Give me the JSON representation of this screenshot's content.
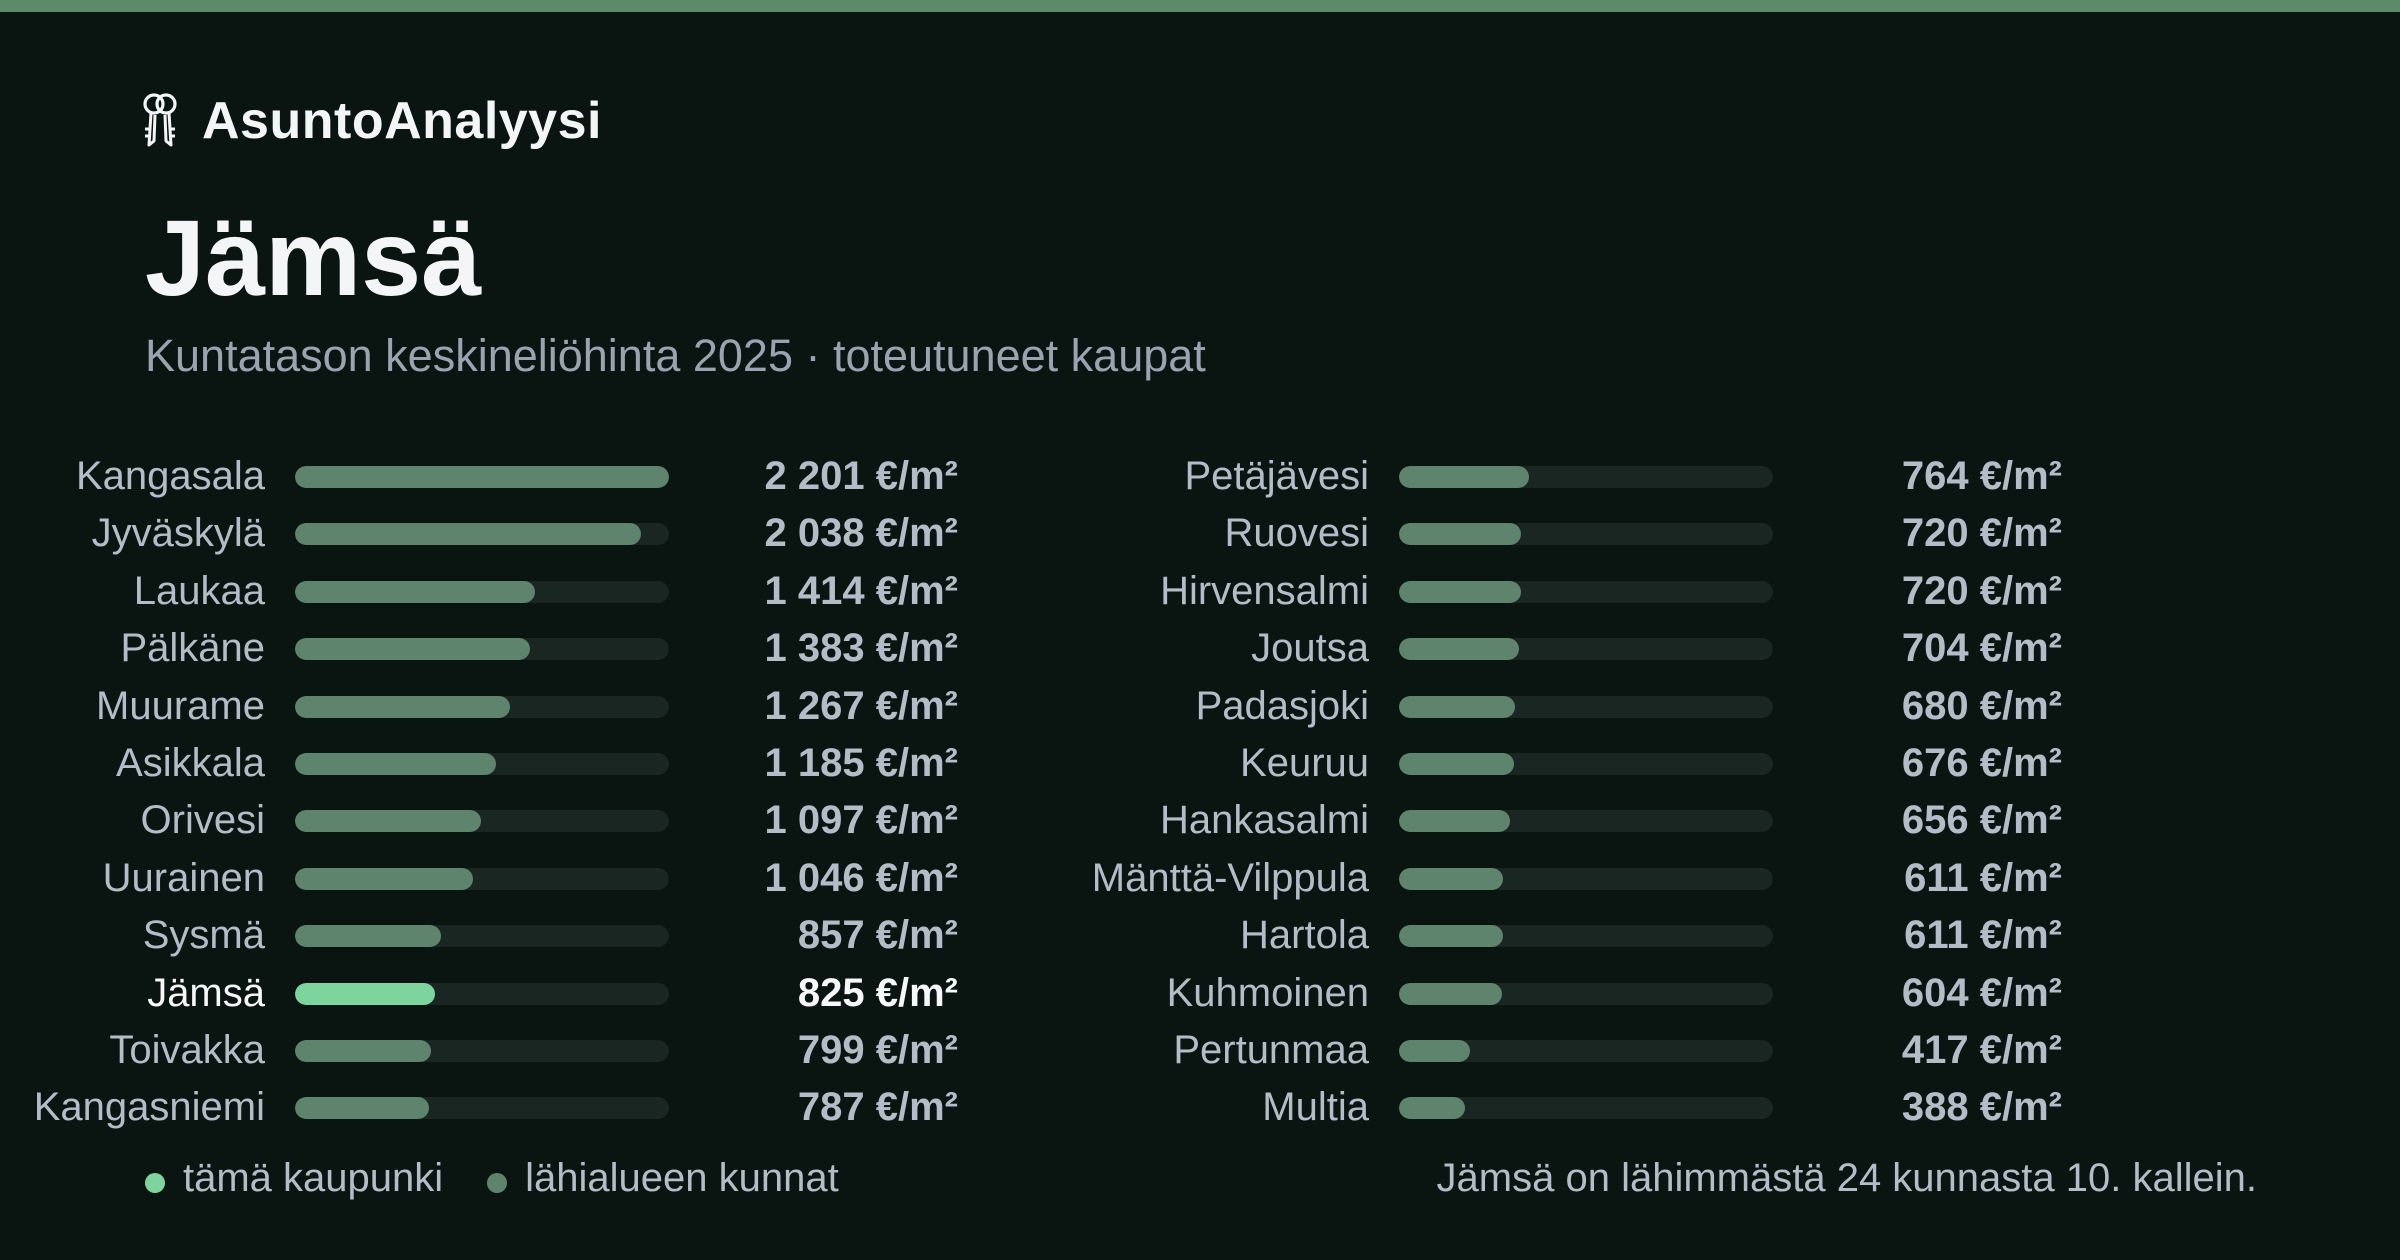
{
  "brand": {
    "name": "AsuntoAnalyysi",
    "icon": "keys-icon"
  },
  "title": "Jämsä",
  "subtitle": "Kuntatason keskineliöhinta 2025 · toteutuneet kaupat",
  "colors": {
    "accent": "#5e8b67",
    "highlight": "#7dd49d",
    "bar": "#5f846d",
    "track": "#192622",
    "background": "#0a1512"
  },
  "chart_data": {
    "type": "bar",
    "orientation": "horizontal",
    "xlim": [
      0,
      2201
    ],
    "grid": false,
    "highlight": "Jämsä",
    "unit": "€/m²",
    "categories": [
      "Kangasala",
      "Jyväskylä",
      "Laukaa",
      "Pälkäne",
      "Muurame",
      "Asikkala",
      "Orivesi",
      "Uurainen",
      "Sysmä",
      "Jämsä",
      "Toivakka",
      "Kangasniemi",
      "Petäjävesi",
      "Ruovesi",
      "Hirvensalmi",
      "Joutsa",
      "Padasjoki",
      "Keuruu",
      "Hankasalmi",
      "Mänttä-Vilppula",
      "Hartola",
      "Kuhmoinen",
      "Pertunmaa",
      "Multia"
    ],
    "values": [
      2201,
      2038,
      1414,
      1383,
      1267,
      1185,
      1097,
      1046,
      857,
      825,
      799,
      787,
      764,
      720,
      720,
      704,
      680,
      676,
      656,
      611,
      611,
      604,
      417,
      388
    ],
    "value_labels": [
      "2 201 €/m²",
      "2 038 €/m²",
      "1 414 €/m²",
      "1 383 €/m²",
      "1 267 €/m²",
      "1 185 €/m²",
      "1 097 €/m²",
      "1 046 €/m²",
      "857 €/m²",
      "825 €/m²",
      "799 €/m²",
      "787 €/m²",
      "764 €/m²",
      "720 €/m²",
      "720 €/m²",
      "704 €/m²",
      "680 €/m²",
      "676 €/m²",
      "656 €/m²",
      "611 €/m²",
      "611 €/m²",
      "604 €/m²",
      "417 €/m²",
      "388 €/m²"
    ],
    "legend": [
      {
        "label": "tämä kaupunki",
        "color": "#7dd49d"
      },
      {
        "label": "lähialueen kunnat",
        "color": "#5f846d"
      }
    ]
  },
  "note": "Jämsä on lähimmästä 24 kunnasta 10. kallein."
}
